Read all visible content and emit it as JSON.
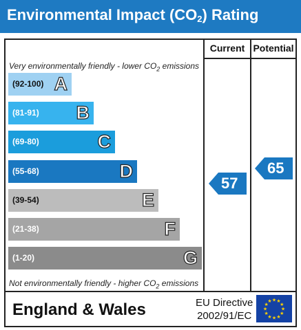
{
  "header": {
    "title_main": "Environmental Impact (CO",
    "title_sub": "2",
    "title_end": ") Rating"
  },
  "columns": {
    "current": "Current",
    "potential": "Potential"
  },
  "notes": {
    "top_pre": "Very environmentally friendly - lower CO",
    "top_sub": "2",
    "top_post": " emissions",
    "bottom_pre": "Not environmentally friendly - higher CO",
    "bottom_sub": "2",
    "bottom_post": " emissions"
  },
  "chart_data": {
    "type": "bar",
    "title": "Environmental Impact (CO2) Rating",
    "categories": [
      "A",
      "B",
      "C",
      "D",
      "E",
      "F",
      "G"
    ],
    "ranges": [
      "(92-100)",
      "(81-91)",
      "(69-80)",
      "(55-68)",
      "(39-54)",
      "(21-38)",
      "(1-20)"
    ],
    "colors": [
      "#9fd1f2",
      "#37b3ee",
      "#1b9ddc",
      "#1a78c1",
      "#bcbcbc",
      "#a5a5a5",
      "#8b8b8b"
    ],
    "range_colors": [
      "#111111",
      "#ffffff",
      "#ffffff",
      "#ffffff",
      "#111111",
      "#ffffff",
      "#ffffff"
    ],
    "current": {
      "value": 57,
      "band": "D"
    },
    "potential": {
      "value": 65,
      "band": "D"
    }
  },
  "footer": {
    "region": "England & Wales",
    "directive_line1": "EU Directive",
    "directive_line2": "2002/91/EC",
    "flag": "eu-flag-icon"
  }
}
